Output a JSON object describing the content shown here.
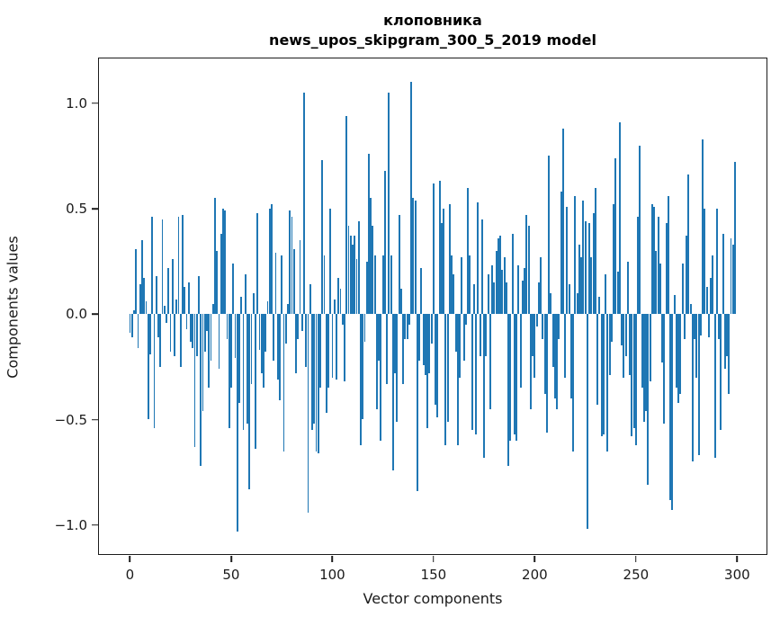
{
  "figure": {
    "title_line1": "клоповника",
    "title_line2": "news_upos_skipgram_300_5_2019 model",
    "xlabel": "Vector components",
    "ylabel": "Components values"
  },
  "chart_data": {
    "type": "bar",
    "title": "клоповника",
    "subtitle": "news_upos_skipgram_300_5_2019 model",
    "xlabel": "Vector components",
    "ylabel": "Components values",
    "bar_color": "#1f77b4",
    "grid": false,
    "legend": "none",
    "n_components": 300,
    "xlim": [
      -15.3,
      315.4
    ],
    "ylim": [
      -1.146,
      1.212
    ],
    "x_ticks": [
      0,
      50,
      100,
      150,
      200,
      250,
      300
    ],
    "x_tick_labels": [
      "0",
      "50",
      "100",
      "150",
      "200",
      "250",
      "300"
    ],
    "y_ticks": [
      -1.0,
      -0.5,
      0.0,
      0.5,
      1.0
    ],
    "y_tick_labels": [
      "−1.0",
      "−0.5",
      "0.0",
      "0.5",
      "1.0"
    ],
    "values": [
      -0.09,
      -0.11,
      0.02,
      0.31,
      -0.16,
      0.14,
      0.35,
      0.17,
      0.06,
      -0.5,
      -0.19,
      0.46,
      -0.54,
      0.18,
      -0.11,
      -0.25,
      0.45,
      0.04,
      -0.04,
      0.22,
      -0.18,
      0.26,
      -0.2,
      0.07,
      0.46,
      -0.25,
      0.47,
      0.13,
      -0.07,
      0.15,
      -0.13,
      -0.16,
      -0.63,
      -0.2,
      0.18,
      -0.72,
      -0.46,
      -0.18,
      -0.08,
      -0.35,
      -0.22,
      0.05,
      0.55,
      0.3,
      -0.26,
      0.38,
      0.5,
      0.49,
      -0.12,
      -0.54,
      -0.35,
      0.24,
      -0.21,
      -1.03,
      -0.42,
      0.08,
      -0.55,
      0.19,
      -0.52,
      -0.83,
      -0.33,
      0.1,
      -0.64,
      0.48,
      -0.17,
      -0.28,
      -0.35,
      -0.18,
      0.06,
      0.5,
      0.52,
      -0.22,
      0.29,
      -0.31,
      -0.41,
      0.28,
      -0.65,
      -0.14,
      0.05,
      0.49,
      0.46,
      0.31,
      -0.28,
      -0.12,
      0.35,
      -0.08,
      1.05,
      -0.25,
      -0.94,
      0.14,
      -0.55,
      -0.52,
      -0.65,
      -0.66,
      -0.35,
      0.73,
      0.28,
      -0.47,
      -0.35,
      0.5,
      -0.3,
      0.07,
      -0.31,
      0.17,
      0.12,
      -0.05,
      -0.32,
      0.94,
      0.42,
      0.37,
      0.33,
      0.37,
      0.26,
      0.44,
      -0.62,
      -0.5,
      -0.13,
      0.25,
      0.76,
      0.55,
      0.42,
      0.28,
      -0.45,
      -0.22,
      -0.6,
      0.28,
      0.68,
      -0.33,
      1.05,
      0.28,
      -0.74,
      -0.28,
      -0.51,
      0.47,
      0.12,
      -0.33,
      -0.12,
      -0.12,
      -0.05,
      1.1,
      0.55,
      0.54,
      -0.84,
      -0.22,
      0.22,
      -0.24,
      -0.29,
      -0.54,
      -0.28,
      -0.14,
      0.62,
      -0.43,
      -0.49,
      0.63,
      0.43,
      0.5,
      -0.62,
      -0.51,
      0.52,
      0.28,
      0.19,
      -0.18,
      -0.62,
      -0.3,
      0.27,
      -0.22,
      -0.05,
      0.6,
      0.28,
      -0.55,
      0.14,
      -0.57,
      0.53,
      -0.2,
      0.45,
      -0.68,
      -0.2,
      0.19,
      -0.45,
      0.23,
      0.15,
      0.3,
      0.36,
      0.37,
      0.21,
      0.27,
      0.15,
      -0.72,
      -0.6,
      0.38,
      -0.57,
      -0.6,
      0.23,
      -0.35,
      0.16,
      0.22,
      0.47,
      0.42,
      -0.45,
      -0.2,
      -0.3,
      -0.06,
      0.15,
      0.27,
      -0.12,
      -0.38,
      -0.56,
      0.75,
      0.1,
      -0.25,
      -0.4,
      -0.45,
      -0.12,
      0.58,
      0.88,
      -0.3,
      0.51,
      0.14,
      -0.4,
      -0.65,
      0.56,
      0.1,
      0.33,
      0.27,
      0.54,
      0.44,
      -1.02,
      0.43,
      0.27,
      0.48,
      0.6,
      -0.43,
      0.08,
      -0.58,
      -0.57,
      0.19,
      -0.65,
      -0.29,
      -0.13,
      0.52,
      0.74,
      0.2,
      0.91,
      -0.15,
      -0.3,
      -0.2,
      0.25,
      -0.29,
      -0.58,
      -0.54,
      -0.62,
      0.46,
      0.8,
      -0.35,
      -0.51,
      -0.46,
      -0.81,
      -0.32,
      0.52,
      0.51,
      0.3,
      0.46,
      0.24,
      -0.23,
      -0.52,
      0.43,
      0.56,
      -0.88,
      -0.93,
      0.09,
      -0.35,
      -0.42,
      -0.38,
      0.24,
      -0.12,
      0.37,
      0.66,
      0.05,
      -0.7,
      -0.12,
      -0.3,
      -0.67,
      -0.1,
      0.83,
      0.5,
      0.13,
      -0.11,
      0.17,
      0.28,
      -0.68,
      0.5,
      -0.12,
      -0.55,
      0.38,
      -0.26,
      -0.2,
      -0.38,
      0.36,
      0.33,
      0.72
    ]
  }
}
